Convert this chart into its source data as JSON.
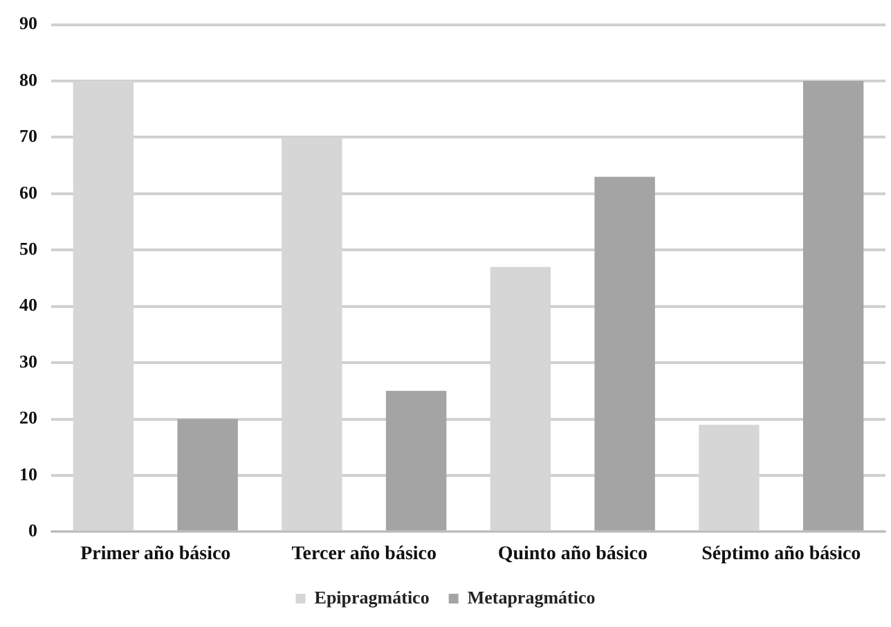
{
  "chart_data": {
    "type": "bar",
    "categories": [
      "Primer año básico",
      "Tercer año básico",
      "Quinto año básico",
      "Séptimo año básico"
    ],
    "series": [
      {
        "name": "Epipragmático",
        "color": "#d6d6d6",
        "values": [
          80,
          70,
          47,
          19
        ]
      },
      {
        "name": "Metapragmático",
        "color": "#a4a4a4",
        "values": [
          20,
          25,
          63,
          80
        ]
      }
    ],
    "ylim": [
      0,
      90
    ],
    "yticks": [
      0,
      10,
      20,
      30,
      40,
      50,
      60,
      70,
      80,
      90
    ],
    "grid": "y",
    "legend": "bottom"
  }
}
